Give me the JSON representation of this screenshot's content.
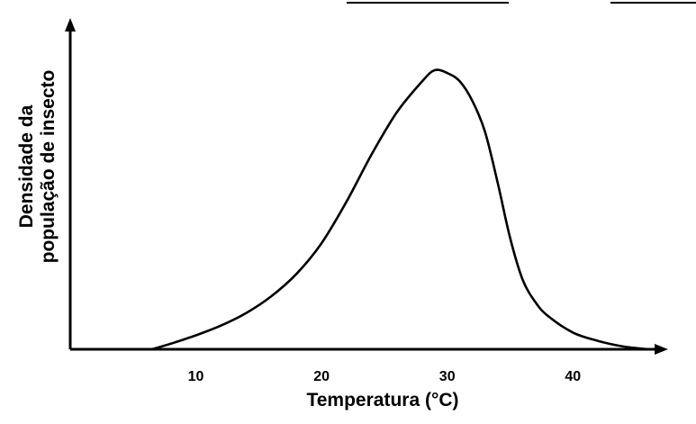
{
  "chart_data": {
    "type": "line",
    "title": "",
    "xlabel": "Temperatura  (°C)",
    "ylabel_lines": [
      "Densidade da",
      "população de insecto"
    ],
    "x_ticks": [
      10,
      20,
      30,
      40
    ],
    "xlim": [
      0,
      46
    ],
    "ylim": [
      0,
      100
    ],
    "grid": false,
    "series": [
      {
        "values_xy": [
          [
            6.5,
            0
          ],
          [
            8,
            2
          ],
          [
            10,
            5
          ],
          [
            12,
            8.5
          ],
          [
            14,
            13
          ],
          [
            16,
            19
          ],
          [
            18,
            27
          ],
          [
            20,
            38
          ],
          [
            22,
            53
          ],
          [
            24,
            70
          ],
          [
            26,
            85
          ],
          [
            28,
            96
          ],
          [
            29,
            100
          ],
          [
            30,
            99
          ],
          [
            31,
            96
          ],
          [
            32,
            89
          ],
          [
            33,
            78
          ],
          [
            34,
            60
          ],
          [
            35,
            40
          ],
          [
            36,
            25
          ],
          [
            37,
            17
          ],
          [
            38,
            12
          ],
          [
            40,
            6
          ],
          [
            42,
            3
          ],
          [
            44,
            1
          ],
          [
            46,
            0
          ]
        ]
      }
    ],
    "colors": {
      "line": "#000000",
      "axis": "#000000"
    }
  }
}
